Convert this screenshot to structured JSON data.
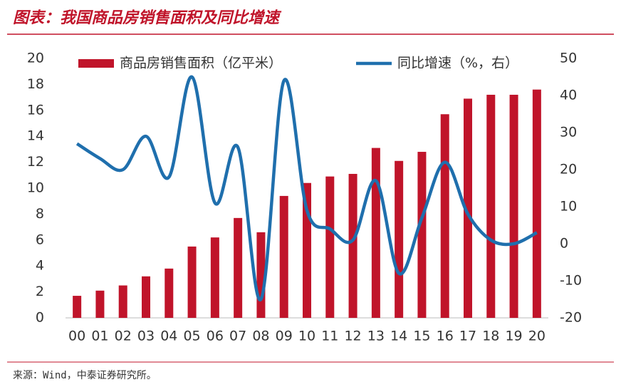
{
  "chart_data": {
    "type": "bar_line",
    "title": "图表：我国商品房销售面积及同比增速",
    "source": "来源：Wind，中泰证券研究所。",
    "categories": [
      "00",
      "01",
      "02",
      "03",
      "04",
      "05",
      "06",
      "07",
      "08",
      "09",
      "10",
      "11",
      "12",
      "13",
      "14",
      "15",
      "16",
      "17",
      "18",
      "19",
      "20"
    ],
    "series": [
      {
        "name": "商品房销售面积（亿平米）",
        "type": "bar",
        "color": "#c0142a",
        "values": [
          1.7,
          2.1,
          2.5,
          3.2,
          3.8,
          5.5,
          6.2,
          7.7,
          6.6,
          9.4,
          10.4,
          10.9,
          11.1,
          13.1,
          12.1,
          12.8,
          15.7,
          16.9,
          17.2,
          17.2,
          17.6
        ]
      },
      {
        "name": "同比增速（%，右）",
        "type": "line",
        "axis": "y2",
        "color": "#1f6fad",
        "values": [
          27,
          23,
          20,
          29,
          18,
          45,
          11,
          26,
          -15,
          44,
          9,
          4,
          1,
          17,
          -8,
          7,
          22,
          8,
          1,
          0,
          3
        ]
      }
    ],
    "ylim": [
      0,
      20
    ],
    "yticks": [
      0,
      2,
      4,
      6,
      8,
      10,
      12,
      14,
      16,
      18,
      20
    ],
    "y2lim": [
      -20,
      50
    ],
    "y2ticks": [
      -20,
      -10,
      0,
      10,
      20,
      30,
      40,
      50
    ],
    "grid": false
  }
}
